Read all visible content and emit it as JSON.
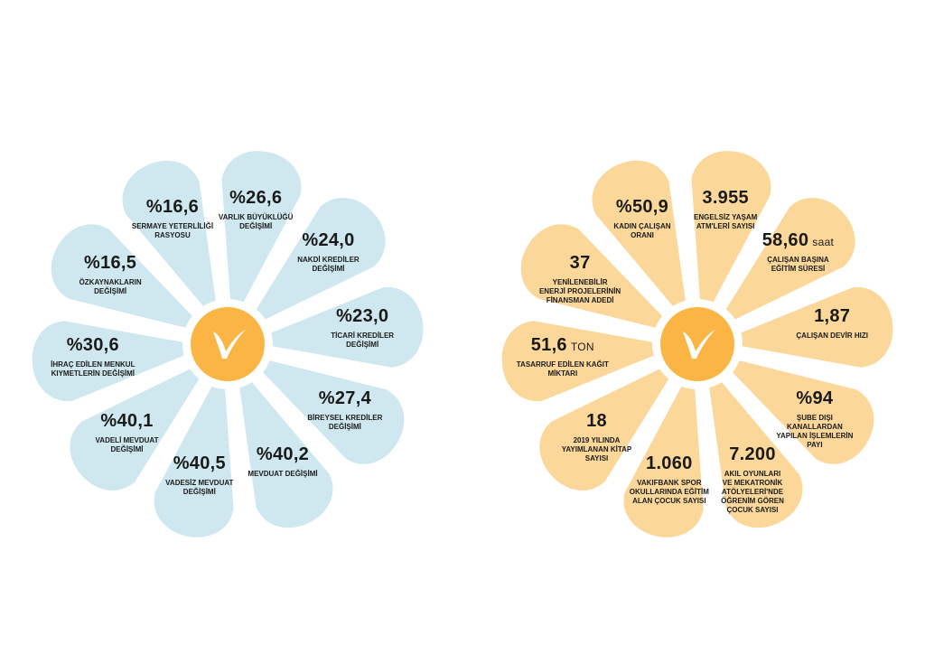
{
  "colors": {
    "left_petal": "#cfe8ef",
    "right_petal": "#fbd79a",
    "center_fill": "#fbb544",
    "center_ring": "#ffffff",
    "text": "#1a1a1a"
  },
  "left_flower": {
    "logo_text": "V",
    "petals": [
      {
        "value": "%26,6",
        "unit": "",
        "label_lines": [
          "VARLIK BÜYÜKLÜĞÜ",
          "DEĞİŞİMİ"
        ]
      },
      {
        "value": "%24,0",
        "unit": "",
        "label_lines": [
          "NAKDİ KREDİLER",
          "DEĞİŞİMİ"
        ]
      },
      {
        "value": "%23,0",
        "unit": "",
        "label_lines": [
          "TİCARİ KREDİLER",
          "DEĞİŞİMİ"
        ]
      },
      {
        "value": "%27,4",
        "unit": "",
        "label_lines": [
          "BİREYSEL KREDİLER",
          "DEĞİŞİMİ"
        ]
      },
      {
        "value": "%40,2",
        "unit": "",
        "label_lines": [
          "MEVDUAT DEĞİŞİMİ"
        ]
      },
      {
        "value": "%40,5",
        "unit": "",
        "label_lines": [
          "VADESİZ MEVDUAT",
          "DEĞİŞİMİ"
        ]
      },
      {
        "value": "%40,1",
        "unit": "",
        "label_lines": [
          "VADELİ MEVDUAT",
          "DEĞİŞİMİ"
        ]
      },
      {
        "value": "%30,6",
        "unit": "",
        "label_lines": [
          "İHRAÇ EDİLEN MENKUL",
          "KIYMETLERİN DEĞİŞİMİ"
        ]
      },
      {
        "value": "%16,5",
        "unit": "",
        "label_lines": [
          "ÖZKAYNAKLARIN",
          "DEĞİŞİMİ"
        ]
      },
      {
        "value": "%16,6",
        "unit": "",
        "label_lines": [
          "SERMAYE YETERLİLİĞİ",
          "RASYOSU"
        ]
      }
    ]
  },
  "right_flower": {
    "logo_text": "V",
    "petals": [
      {
        "value": "3.955",
        "unit": "",
        "label_lines": [
          "ENGELSİZ YAŞAM",
          "ATM'LERİ SAYISI"
        ]
      },
      {
        "value": "58,60",
        "unit": "saat",
        "label_lines": [
          "ÇALIŞAN BAŞINA",
          "EĞİTİM SÜRESİ"
        ]
      },
      {
        "value": "1,87",
        "unit": "",
        "label_lines": [
          "ÇALIŞAN DEVİR HIZI"
        ]
      },
      {
        "value": "%94",
        "unit": "",
        "label_lines": [
          "ŞUBE DIŞI",
          "KANALLARDAN",
          "YAPILAN İŞLEMLERİN",
          "PAYI"
        ]
      },
      {
        "value": "7.200",
        "unit": "",
        "label_lines": [
          "AKIL OYUNLARI",
          "VE MEKATRONİK",
          "ATÖLYELERİ'NDE",
          "ÖĞRENİM GÖREN",
          "ÇOCUK SAYISI"
        ]
      },
      {
        "value": "1.060",
        "unit": "",
        "label_lines": [
          "VAKIFBANK SPOR",
          "OKULLARINDA EĞİTİM",
          "ALAN ÇOCUK SAYISI"
        ]
      },
      {
        "value": "18",
        "unit": "",
        "label_lines": [
          "2019 YILINDA",
          "YAYIMLANAN KİTAP",
          "SAYISI"
        ]
      },
      {
        "value": "51,6",
        "unit": "TON",
        "label_lines": [
          "TASARRUF EDİLEN KAĞIT",
          "MİKTARI"
        ]
      },
      {
        "value": "37",
        "unit": "",
        "label_lines": [
          "YENİLENEBİLİR",
          "ENERJİ PROJELERİNİN",
          "FİNANSMAN ADEDİ"
        ]
      },
      {
        "value": "%50,9",
        "unit": "",
        "label_lines": [
          "KADIN ÇALIŞAN",
          "ORANI"
        ]
      }
    ]
  }
}
